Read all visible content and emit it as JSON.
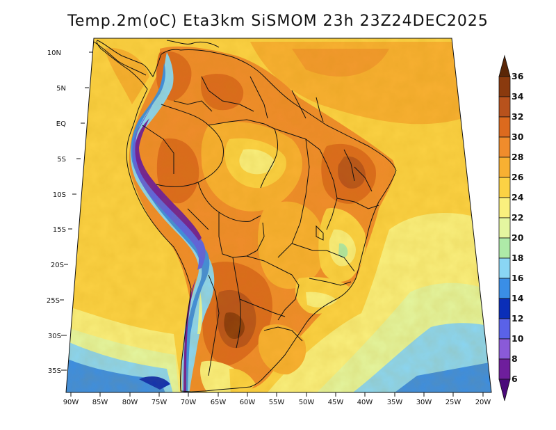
{
  "title": "Temp.2m(oC) Eta3km SiSMOM 23h 23Z24DEC2025",
  "latitude_labels": [
    "10N",
    "5N",
    "EQ",
    "5S",
    "10S",
    "15S",
    "20S",
    "25S",
    "30S",
    "35S"
  ],
  "longitude_labels": [
    "90W",
    "85W",
    "80W",
    "75W",
    "70W",
    "65W",
    "60W",
    "55W",
    "50W",
    "45W",
    "40W",
    "35W",
    "30W",
    "25W",
    "20W"
  ],
  "colorbar": {
    "levels": [
      "36",
      "34",
      "32",
      "30",
      "28",
      "26",
      "24",
      "22",
      "20",
      "18",
      "16",
      "14",
      "12",
      "10",
      "8",
      "6"
    ],
    "colors": [
      "#5a2607",
      "#8a3a0e",
      "#b8521c",
      "#dc6a1e",
      "#f08c2c",
      "#f8b032",
      "#fcd244",
      "#faf07e",
      "#e4f6a0",
      "#aeeaa8",
      "#8ad6f4",
      "#3a8ee6",
      "#0a2eb8",
      "#5a62e8",
      "#8a5ad8",
      "#6e1e9c",
      "#4a0a7a"
    ]
  }
}
